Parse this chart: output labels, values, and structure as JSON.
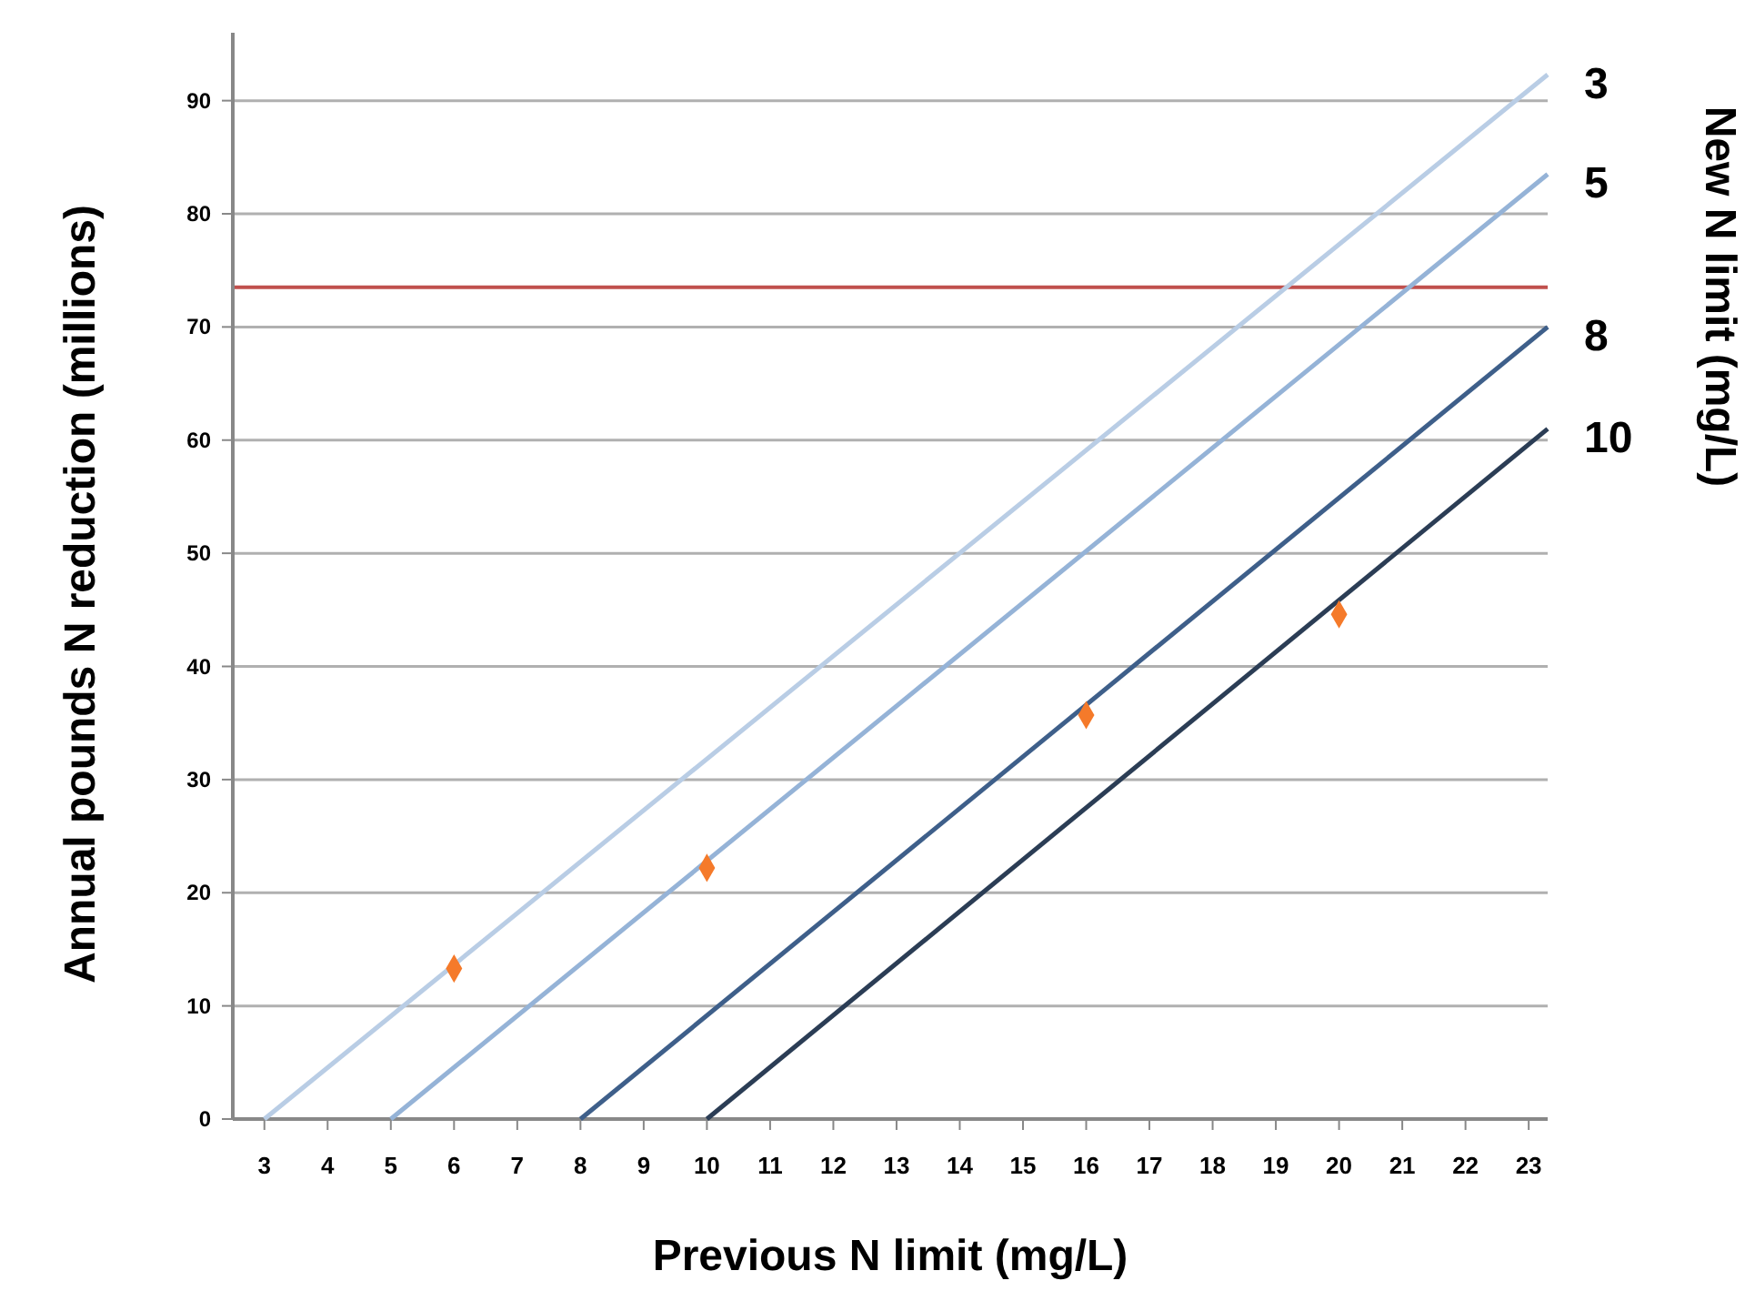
{
  "chart_data": {
    "type": "line",
    "xlabel": "Previous N limit (mg/L)",
    "ylabel": "Annual pounds N reduction (millions)",
    "legend_title": "New N limit (mg/L)",
    "xlim": [
      2.5,
      23.3
    ],
    "xticks": [
      3,
      4,
      5,
      6,
      7,
      8,
      9,
      10,
      11,
      12,
      13,
      14,
      15,
      16,
      17,
      18,
      19,
      20,
      21,
      22,
      23
    ],
    "ylim": [
      0,
      96
    ],
    "yticks": [
      0,
      10,
      20,
      30,
      40,
      50,
      60,
      70,
      80,
      90
    ],
    "grid": "y",
    "marker": "none",
    "line_style": "solid",
    "series": [
      {
        "name": "3",
        "color": "#b9cde5",
        "x": [
          3,
          23.3
        ],
        "values": [
          0,
          92.3
        ]
      },
      {
        "name": "5",
        "color": "#95b3d7",
        "x": [
          5,
          23.3
        ],
        "values": [
          0,
          83.5
        ]
      },
      {
        "name": "8",
        "color": "#3e5f8a",
        "x": [
          8,
          23.3
        ],
        "values": [
          0,
          70
        ]
      },
      {
        "name": "10",
        "color": "#2b3d55",
        "x": [
          10,
          23.3
        ],
        "values": [
          0,
          61
        ]
      },
      {
        "type": "scatter",
        "color": "#f57a2a",
        "marker": "diamond",
        "x": [
          6,
          10,
          16,
          20
        ],
        "values": [
          13.3,
          22.2,
          35.7,
          44.6
        ]
      }
    ],
    "ref_lines": [
      {
        "axis": "y",
        "value": 73.5,
        "color": "#c0504d"
      }
    ]
  }
}
